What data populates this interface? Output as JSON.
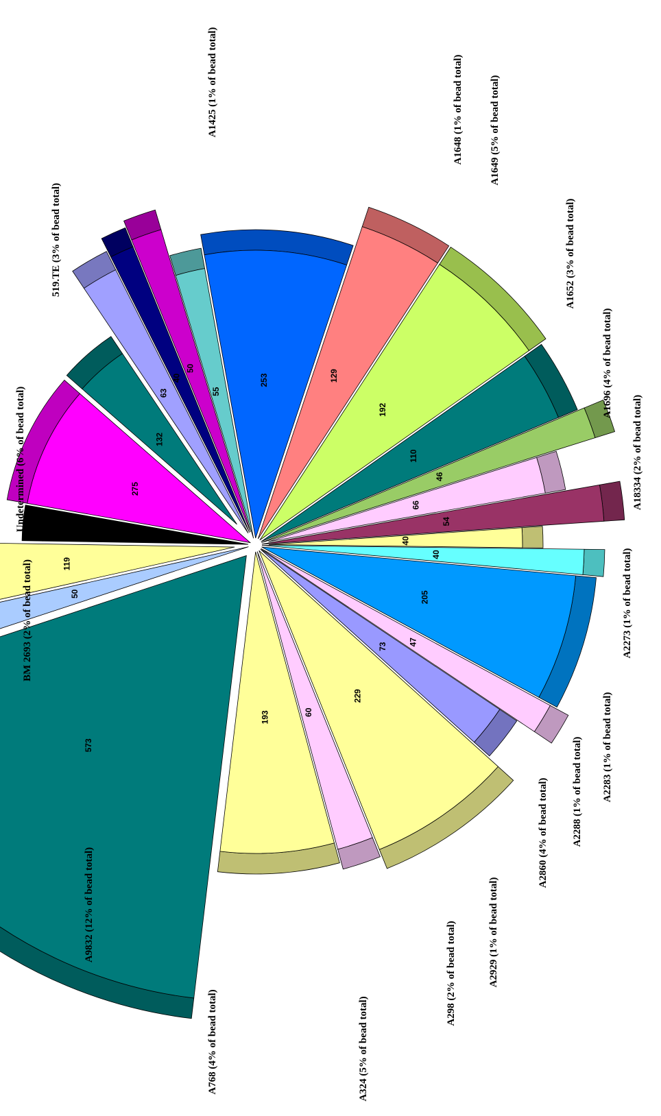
{
  "chart_data": {
    "type": "pie",
    "title": "",
    "rotation": "rotated 90 degrees clockwise, exploded 3-D wedges",
    "slices": [
      {
        "label": "Undetermined (6% of bead total)",
        "value": 275,
        "color": "#ff00ff"
      },
      {
        "label": "519.TE (3% of bead total)",
        "value": 132,
        "color": "#007b7b"
      },
      {
        "label": "",
        "value": 63,
        "color": "#a0a0ff"
      },
      {
        "label": "A1425 (1% of bead total)",
        "value": 40,
        "color": "#000080"
      },
      {
        "label": "",
        "value": 50,
        "color": "#cc00cc"
      },
      {
        "label": "A1648 (1% of bead total)",
        "value": 55,
        "color": "#66cccc"
      },
      {
        "label": "A1649 (5% of bead total)",
        "value": 253,
        "color": "#0066ff"
      },
      {
        "label": "A1652 (3% of bead total)",
        "value": 129,
        "color": "#ff8080"
      },
      {
        "label": "A1696 (4% of bead total)",
        "value": 192,
        "color": "#ccff66"
      },
      {
        "label": "A18334 (2% of bead total)",
        "value": 110,
        "color": "#007b7b"
      },
      {
        "label": "",
        "value": 46,
        "color": "#99cc66"
      },
      {
        "label": "A2273 (1% of bead total)",
        "value": 66,
        "color": "#ffccff"
      },
      {
        "label": "",
        "value": 54,
        "color": "#993366"
      },
      {
        "label": "A2283 (1% of bead total)",
        "value": 40,
        "color": "#ffff99"
      },
      {
        "label": "A2288 (1% of bead total)",
        "value": 40,
        "color": "#66ffff"
      },
      {
        "label": "A2860 (4% of bead total)",
        "value": 205,
        "color": "#0099ff"
      },
      {
        "label": "A2929 (1% of bead total)",
        "value": 47,
        "color": "#ffccff"
      },
      {
        "label": "A298 (2% of bead total)",
        "value": 73,
        "color": "#9999ff"
      },
      {
        "label": "A324 (5% of bead total)",
        "value": 229,
        "color": "#ffff99"
      },
      {
        "label": "",
        "value": 60,
        "color": "#ffccff"
      },
      {
        "label": "A768 (4% of bead total)",
        "value": 193,
        "color": "#ffff99"
      },
      {
        "label": "A9832 (12% of bead total)",
        "value": 573,
        "color": "#007b7b"
      },
      {
        "label": "",
        "value": 50,
        "color": "#aaccff"
      },
      {
        "label": "BM 2693 (2% of bead total)",
        "value": 119,
        "color": "#ffff99"
      },
      {
        "label": "",
        "value": 80,
        "color": "#000000"
      }
    ],
    "value_labels": [
      "275",
      "132",
      "63",
      "55",
      "253",
      "129",
      "192",
      "110",
      "46",
      "66",
      "54",
      "205",
      "47",
      "73",
      "229",
      "193",
      "573",
      "119"
    ],
    "category_labels": [
      "A1425 (1% of bead total)",
      "519.TE (3% of bead total)",
      "Undetermined (6% of bead total)",
      "A1648 (1% of bead total)",
      "A1649 (5% of bead total)",
      "A1652 (3% of bead total)",
      "A1696 (4% of bead total)",
      "A18334 (2% of bead total)",
      "A2273 (1% of bead total)",
      "A2283 (1% of bead total)",
      "A2288 (1% of bead total)",
      "A2860 (4% of bead total)",
      "A2929 (1% of bead total)",
      "A298 (2% of bead total)",
      "A324 (5% of bead total)",
      "A768 (4% of bead total)",
      "A9832 (12% of bead total)",
      "BM 2693 (2% of bead total)"
    ],
    "legend": "none"
  }
}
